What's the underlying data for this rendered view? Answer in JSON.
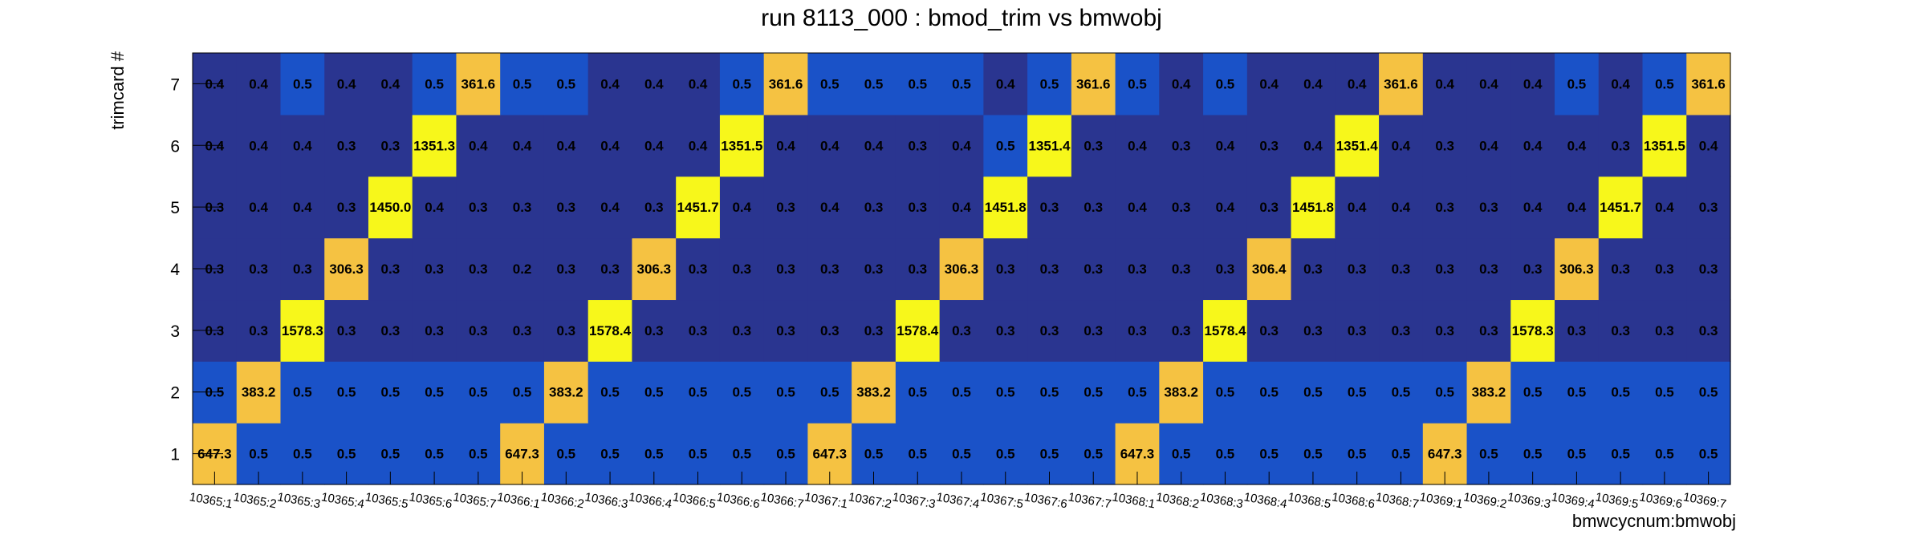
{
  "chart_data": {
    "type": "heatmap",
    "title": "run 8113_000 : bmod_trim vs bmwobj",
    "xlabel": "bmwcycnum:bmwobj",
    "ylabel": "trimcard #",
    "x_categories": [
      "10365:1",
      "10365:2",
      "10365:3",
      "10365:4",
      "10365:5",
      "10365:6",
      "10365:7",
      "10366:1",
      "10366:2",
      "10366:3",
      "10366:4",
      "10366:5",
      "10366:6",
      "10366:7",
      "10367:1",
      "10367:2",
      "10367:3",
      "10367:4",
      "10367:5",
      "10367:6",
      "10367:7",
      "10368:1",
      "10368:2",
      "10368:3",
      "10368:4",
      "10368:5",
      "10368:6",
      "10368:7",
      "10369:1",
      "10369:2",
      "10369:3",
      "10369:4",
      "10369:5",
      "10369:6",
      "10369:7"
    ],
    "y_categories": [
      "1",
      "2",
      "3",
      "4",
      "5",
      "6",
      "7"
    ],
    "rows": [
      [
        "647.3",
        "0.5",
        "0.5",
        "0.5",
        "0.5",
        "0.5",
        "0.5",
        "647.3",
        "0.5",
        "0.5",
        "0.5",
        "0.5",
        "0.5",
        "0.5",
        "647.3",
        "0.5",
        "0.5",
        "0.5",
        "0.5",
        "0.5",
        "0.5",
        "647.3",
        "0.5",
        "0.5",
        "0.5",
        "0.5",
        "0.5",
        "0.5",
        "647.3",
        "0.5",
        "0.5",
        "0.5",
        "0.5",
        "0.5",
        "0.5"
      ],
      [
        "0.5",
        "383.2",
        "0.5",
        "0.5",
        "0.5",
        "0.5",
        "0.5",
        "0.5",
        "383.2",
        "0.5",
        "0.5",
        "0.5",
        "0.5",
        "0.5",
        "0.5",
        "383.2",
        "0.5",
        "0.5",
        "0.5",
        "0.5",
        "0.5",
        "0.5",
        "383.2",
        "0.5",
        "0.5",
        "0.5",
        "0.5",
        "0.5",
        "0.5",
        "383.2",
        "0.5",
        "0.5",
        "0.5",
        "0.5",
        "0.5"
      ],
      [
        "0.3",
        "0.3",
        "1578.3",
        "0.3",
        "0.3",
        "0.3",
        "0.3",
        "0.3",
        "0.3",
        "1578.4",
        "0.3",
        "0.3",
        "0.3",
        "0.3",
        "0.3",
        "0.3",
        "1578.4",
        "0.3",
        "0.3",
        "0.3",
        "0.3",
        "0.3",
        "0.3",
        "1578.4",
        "0.3",
        "0.3",
        "0.3",
        "0.3",
        "0.3",
        "0.3",
        "1578.3",
        "0.3",
        "0.3",
        "0.3",
        "0.3"
      ],
      [
        "0.3",
        "0.3",
        "0.3",
        "306.3",
        "0.3",
        "0.3",
        "0.3",
        "0.2",
        "0.3",
        "0.3",
        "306.3",
        "0.3",
        "0.3",
        "0.3",
        "0.3",
        "0.3",
        "0.3",
        "306.3",
        "0.3",
        "0.3",
        "0.3",
        "0.3",
        "0.3",
        "0.3",
        "306.4",
        "0.3",
        "0.3",
        "0.3",
        "0.3",
        "0.3",
        "0.3",
        "306.3",
        "0.3",
        "0.3",
        "0.3"
      ],
      [
        "0.3",
        "0.4",
        "0.4",
        "0.3",
        "1450.0",
        "0.4",
        "0.3",
        "0.3",
        "0.3",
        "0.4",
        "0.3",
        "1451.7",
        "0.4",
        "0.3",
        "0.4",
        "0.3",
        "0.3",
        "0.4",
        "1451.8",
        "0.3",
        "0.3",
        "0.4",
        "0.3",
        "0.4",
        "0.3",
        "1451.8",
        "0.4",
        "0.4",
        "0.3",
        "0.3",
        "0.4",
        "0.4",
        "1451.7",
        "0.4",
        "0.3"
      ],
      [
        "0.4",
        "0.4",
        "0.4",
        "0.3",
        "0.3",
        "1351.3",
        "0.4",
        "0.4",
        "0.4",
        "0.4",
        "0.4",
        "0.4",
        "1351.5",
        "0.4",
        "0.4",
        "0.4",
        "0.3",
        "0.4",
        "0.5",
        "1351.4",
        "0.3",
        "0.4",
        "0.3",
        "0.4",
        "0.3",
        "0.4",
        "1351.4",
        "0.4",
        "0.3",
        "0.4",
        "0.4",
        "0.4",
        "0.3",
        "1351.5",
        "0.4"
      ],
      [
        "0.4",
        "0.4",
        "0.5",
        "0.4",
        "0.4",
        "0.5",
        "361.6",
        "0.5",
        "0.5",
        "0.4",
        "0.4",
        "0.4",
        "0.5",
        "361.6",
        "0.5",
        "0.5",
        "0.5",
        "0.5",
        "0.4",
        "0.5",
        "361.6",
        "0.5",
        "0.4",
        "0.5",
        "0.4",
        "0.4",
        "0.4",
        "361.6",
        "0.4",
        "0.4",
        "0.4",
        "0.5",
        "0.4",
        "0.5",
        "361.6"
      ]
    ],
    "colors": {
      "low": "#2a3590",
      "mid_low": "#1a52c8",
      "mid_high": "#f5c242",
      "high": "#f7f71b",
      "axis": "#000000"
    },
    "legend": "none",
    "grid": false
  }
}
